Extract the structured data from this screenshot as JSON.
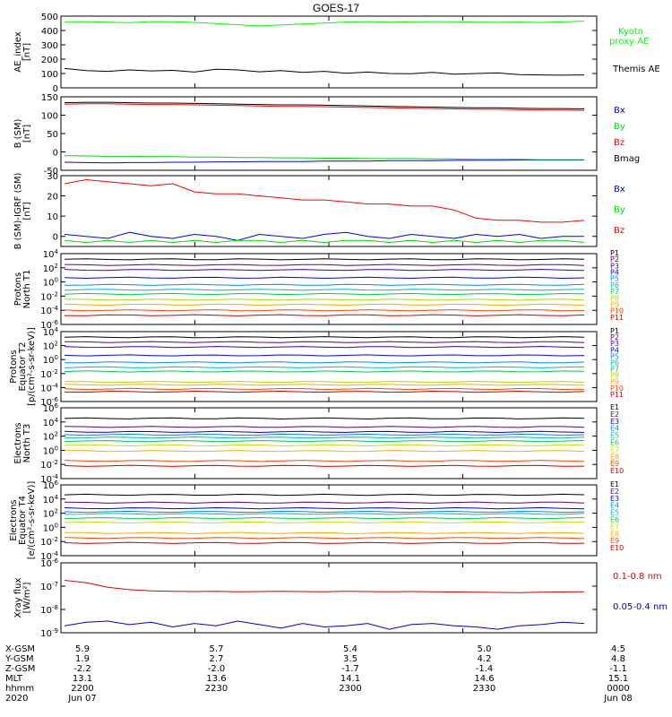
{
  "title": "GOES-17",
  "chart_data": [
    {
      "type": "line",
      "id": "ae",
      "ylabel": [
        "AE_index",
        "[nT]"
      ],
      "ylim": [
        0,
        500
      ],
      "yscale": "linear",
      "yticks": [
        0,
        100,
        200,
        300,
        400,
        500
      ],
      "xlim": [
        0,
        120
      ],
      "series": [
        {
          "name": "Kyoto proxy AE",
          "color": "#00ff00",
          "values": [
            460,
            462,
            458,
            455,
            462,
            461,
            456,
            448,
            440,
            432,
            438,
            445,
            452,
            459,
            462,
            458,
            460,
            462,
            461,
            458,
            457,
            459,
            456,
            460,
            465
          ]
        },
        {
          "name": "Themis AE",
          "color": "#000000",
          "values": [
            135,
            120,
            115,
            125,
            118,
            122,
            110,
            130,
            125,
            112,
            120,
            108,
            115,
            102,
            110,
            100,
            98,
            108,
            95,
            100,
            104,
            92,
            90,
            88,
            90
          ]
        }
      ]
    },
    {
      "type": "line",
      "id": "bsm",
      "ylabel": [
        "B (SM)",
        "[nT]"
      ],
      "ylim": [
        -50,
        150
      ],
      "yscale": "linear",
      "yticks": [
        -50,
        0,
        50,
        100,
        150
      ],
      "yticklabels": [
        "-50",
        "0",
        "50",
        "100",
        "150"
      ],
      "xlim": [
        0,
        120
      ],
      "series": [
        {
          "name": "Bx",
          "color": "#0000ff",
          "values": [
            -28,
            -29,
            -30,
            -29,
            -29,
            -28,
            -28,
            -27,
            -27,
            -26,
            -26,
            -26,
            -25,
            -25,
            -25,
            -24,
            -24,
            -24,
            -23,
            -23,
            -23,
            -22,
            -22,
            -22,
            -22
          ]
        },
        {
          "name": "By",
          "color": "#00dd00",
          "values": [
            -10,
            -11,
            -12,
            -12,
            -13,
            -13,
            -14,
            -14,
            -15,
            -15,
            -16,
            -16,
            -17,
            -17,
            -18,
            -18,
            -18,
            -19,
            -19,
            -20,
            -20,
            -20,
            -21,
            -21,
            -21
          ]
        },
        {
          "name": "Bz",
          "color": "#ff0000",
          "values": [
            130,
            131,
            131,
            130,
            129,
            129,
            128,
            127,
            126,
            125,
            124,
            124,
            123,
            122,
            121,
            120,
            119,
            118,
            117,
            116,
            116,
            115,
            114,
            114,
            113
          ]
        },
        {
          "name": "Bmag",
          "color": "#000000",
          "values": [
            134,
            135,
            135,
            134,
            133,
            133,
            132,
            131,
            130,
            129,
            128,
            128,
            127,
            126,
            125,
            124,
            123,
            122,
            121,
            120,
            120,
            119,
            118,
            118,
            117
          ]
        }
      ]
    },
    {
      "type": "line",
      "id": "bdiff",
      "ylabel": [
        "B (SM)-IGRF (SM)",
        "[nT]"
      ],
      "ylim": [
        -5,
        30
      ],
      "yscale": "linear",
      "yticks": [
        0,
        10,
        20,
        30
      ],
      "yticklabels": [
        "0",
        "10",
        "20",
        "30"
      ],
      "xlim": [
        0,
        120
      ],
      "series": [
        {
          "name": "Bx",
          "color": "#0000ff",
          "values": [
            1,
            0,
            -1,
            2,
            0,
            -1,
            1,
            0,
            -2,
            1,
            0,
            -1,
            1,
            2,
            0,
            -1,
            1,
            0,
            -1,
            1,
            0,
            1,
            -1,
            0,
            0
          ]
        },
        {
          "name": "By",
          "color": "#00dd00",
          "values": [
            -2,
            -3,
            -2,
            -3,
            -2,
            -3,
            -2,
            -3,
            -2,
            -2,
            -3,
            -2,
            -3,
            -2,
            -2,
            -3,
            -2,
            -3,
            -2,
            -3,
            -2,
            -3,
            -2,
            -2,
            -3
          ]
        },
        {
          "name": "Bz",
          "color": "#ff0000",
          "values": [
            26,
            28,
            27,
            26,
            25,
            26,
            22,
            21,
            21,
            20,
            19,
            18,
            18,
            17,
            16,
            16,
            15,
            15,
            13,
            9,
            8,
            8,
            7,
            7,
            8
          ]
        }
      ]
    },
    {
      "type": "line",
      "id": "pn",
      "ylabel": [
        "Protons",
        "North T1"
      ],
      "ylim": [
        -6,
        4
      ],
      "yscale": "log10",
      "yticks": [
        4,
        2,
        0,
        -2,
        -4,
        -6
      ],
      "yticklabels": [
        "10^4",
        "10^2",
        "10^0",
        "10^-2",
        "10^-4",
        "10^-6"
      ],
      "xlim": [
        0,
        120
      ],
      "channels": [
        {
          "name": "P1",
          "color": "#000000",
          "value": 3.2
        },
        {
          "name": "P2",
          "color": "#660066",
          "value": 2.4
        },
        {
          "name": "P3",
          "color": "#4400aa",
          "value": 1.7
        },
        {
          "name": "P4",
          "color": "#0000ff",
          "value": 0.6
        },
        {
          "name": "P5",
          "color": "#0088ff",
          "value": -0.4
        },
        {
          "name": "P6",
          "color": "#00bbbb",
          "value": -1.1
        },
        {
          "name": "P7",
          "color": "#00cc55",
          "value": -1.7
        },
        {
          "name": "P8",
          "color": "#aadd00",
          "value": -2.5
        },
        {
          "name": "P9",
          "color": "#ffaa00",
          "value": -3.2
        },
        {
          "name": "P10",
          "color": "#ff4400",
          "value": -4.0
        },
        {
          "name": "P11",
          "color": "#cc0000",
          "value": -4.7
        }
      ]
    },
    {
      "type": "line",
      "id": "pe",
      "ylabel": [
        "Protons",
        "Equator T2",
        "[p/(cm²-s-sr-keV)]"
      ],
      "ylim": [
        -6,
        4
      ],
      "yscale": "log10",
      "yticks": [
        4,
        2,
        0,
        -2,
        -4,
        -6
      ],
      "yticklabels": [
        "10^4",
        "10^2",
        "10^0",
        "10^-2",
        "10^-4",
        "10^-6"
      ],
      "xlim": [
        0,
        120
      ],
      "channels": [
        {
          "name": "P1",
          "color": "#000000",
          "value": 3.2
        },
        {
          "name": "P2",
          "color": "#660066",
          "value": 2.5
        },
        {
          "name": "P3",
          "color": "#4400aa",
          "value": 1.8
        },
        {
          "name": "P4",
          "color": "#0000ff",
          "value": 0.6
        },
        {
          "name": "P5",
          "color": "#0088ff",
          "value": -0.4
        },
        {
          "name": "P6",
          "color": "#00bbbb",
          "value": -1.1
        },
        {
          "name": "P7",
          "color": "#00cc55",
          "value": -1.7
        },
        {
          "name": "P8",
          "color": "#aadd00",
          "value": -3.2
        },
        {
          "name": "P9",
          "color": "#ffaa00",
          "value": -3.6
        },
        {
          "name": "P10",
          "color": "#ff4400",
          "value": -4.2
        },
        {
          "name": "P11",
          "color": "#cc0000",
          "value": -4.6
        }
      ]
    },
    {
      "type": "line",
      "id": "en",
      "ylabel": [
        "Electrons",
        "North T3"
      ],
      "ylim": [
        -4,
        6
      ],
      "yscale": "log10",
      "yticks": [
        6,
        4,
        2,
        0,
        -2,
        -4
      ],
      "yticklabels": [
        "10^6",
        "10^4",
        "10^2",
        "10^0",
        "10^-2",
        "10^-4"
      ],
      "xlim": [
        0,
        120
      ],
      "channels": [
        {
          "name": "E1",
          "color": "#000000",
          "value": 4.5
        },
        {
          "name": "E2",
          "color": "#660066",
          "value": 3.3
        },
        {
          "name": "E3",
          "color": "#0000ff",
          "value": 2.6
        },
        {
          "name": "E4",
          "color": "#0088ff",
          "value": 2.2
        },
        {
          "name": "E5",
          "color": "#00bbbb",
          "value": 1.8
        },
        {
          "name": "E6",
          "color": "#00cc55",
          "value": 1.3
        },
        {
          "name": "E7",
          "color": "#ccdd00",
          "value": 0.7
        },
        {
          "name": "E8",
          "color": "#ffaa00",
          "value": -0.1
        },
        {
          "name": "E9",
          "color": "#ff4400",
          "value": -1.5
        },
        {
          "name": "E10",
          "color": "#cc0000",
          "value": -2.2
        }
      ]
    },
    {
      "type": "line",
      "id": "ee",
      "ylabel": [
        "Electrons",
        "Equator T4",
        "[e/(cm²-s-sr-keV)]"
      ],
      "ylim": [
        -4,
        6
      ],
      "yscale": "log10",
      "yticks": [
        6,
        4,
        2,
        0,
        -2,
        -4
      ],
      "yticklabels": [
        "10^6",
        "10^4",
        "10^2",
        "10^0",
        "10^-2",
        "10^-4"
      ],
      "xlim": [
        0,
        120
      ],
      "channels": [
        {
          "name": "E1",
          "color": "#000000",
          "value": 4.6
        },
        {
          "name": "E2",
          "color": "#660066",
          "value": 3.5
        },
        {
          "name": "E3",
          "color": "#0000ff",
          "value": 2.7
        },
        {
          "name": "E4",
          "color": "#0088ff",
          "value": 2.2
        },
        {
          "name": "E5",
          "color": "#00bbbb",
          "value": 1.9
        },
        {
          "name": "E6",
          "color": "#00cc55",
          "value": 1.3
        },
        {
          "name": "E7",
          "color": "#ccdd00",
          "value": 0.7
        },
        {
          "name": "E8",
          "color": "#ffaa00",
          "value": -0.8
        },
        {
          "name": "E9",
          "color": "#ff4400",
          "value": -1.5
        },
        {
          "name": "E10",
          "color": "#cc0000",
          "value": -2.2
        }
      ]
    },
    {
      "type": "line",
      "id": "xray",
      "ylabel": [
        "Xray flux",
        "[W/m²]"
      ],
      "ylim": [
        -9,
        -6
      ],
      "yscale": "log10",
      "yticks": [
        -6,
        -7,
        -8,
        -9
      ],
      "yticklabels": [
        "10^-6",
        "10^-7",
        "10^-8",
        "10^-9"
      ],
      "xlim": [
        0,
        120
      ],
      "series": [
        {
          "name": "0.1-0.8 nm",
          "color": "#dd0000",
          "values": [
            -6.75,
            -6.85,
            -7.05,
            -7.15,
            -7.2,
            -7.22,
            -7.23,
            -7.22,
            -7.24,
            -7.23,
            -7.22,
            -7.23,
            -7.24,
            -7.22,
            -7.23,
            -7.24,
            -7.23,
            -7.24,
            -7.25,
            -7.26,
            -7.27,
            -7.28,
            -7.26,
            -7.25,
            -7.24
          ]
        },
        {
          "name": "0.05-0.4 nm",
          "color": "#0000dd",
          "values": [
            -8.7,
            -8.55,
            -8.5,
            -8.65,
            -8.55,
            -8.75,
            -8.6,
            -8.7,
            -8.5,
            -8.65,
            -8.8,
            -8.6,
            -8.75,
            -8.7,
            -8.6,
            -8.85,
            -8.65,
            -8.6,
            -8.7,
            -8.75,
            -8.85,
            -8.7,
            -8.65,
            -8.55,
            -8.6
          ]
        }
      ]
    }
  ],
  "ticks_labels": {
    "ae": [
      "0",
      "100",
      "200",
      "300",
      "400",
      "500"
    ]
  },
  "footer": {
    "rows": [
      "X-GSM",
      "Y-GSM",
      "Z-GSM",
      "MLT",
      "hhmm",
      "2020"
    ],
    "columns": [
      [
        "5.9",
        "1.9",
        "-2.2",
        "13.1",
        "2200",
        "Jun 07"
      ],
      [
        "5.7",
        "2.7",
        "-2.0",
        "13.6",
        "2230",
        ""
      ],
      [
        "5.4",
        "3.5",
        "-1.7",
        "14.1",
        "2300",
        ""
      ],
      [
        "5.0",
        "4.2",
        "-1.4",
        "14.6",
        "2330",
        ""
      ],
      [
        "4.5",
        "4.8",
        "-1.1",
        "15.1",
        "0000",
        "Jun 08"
      ]
    ]
  }
}
